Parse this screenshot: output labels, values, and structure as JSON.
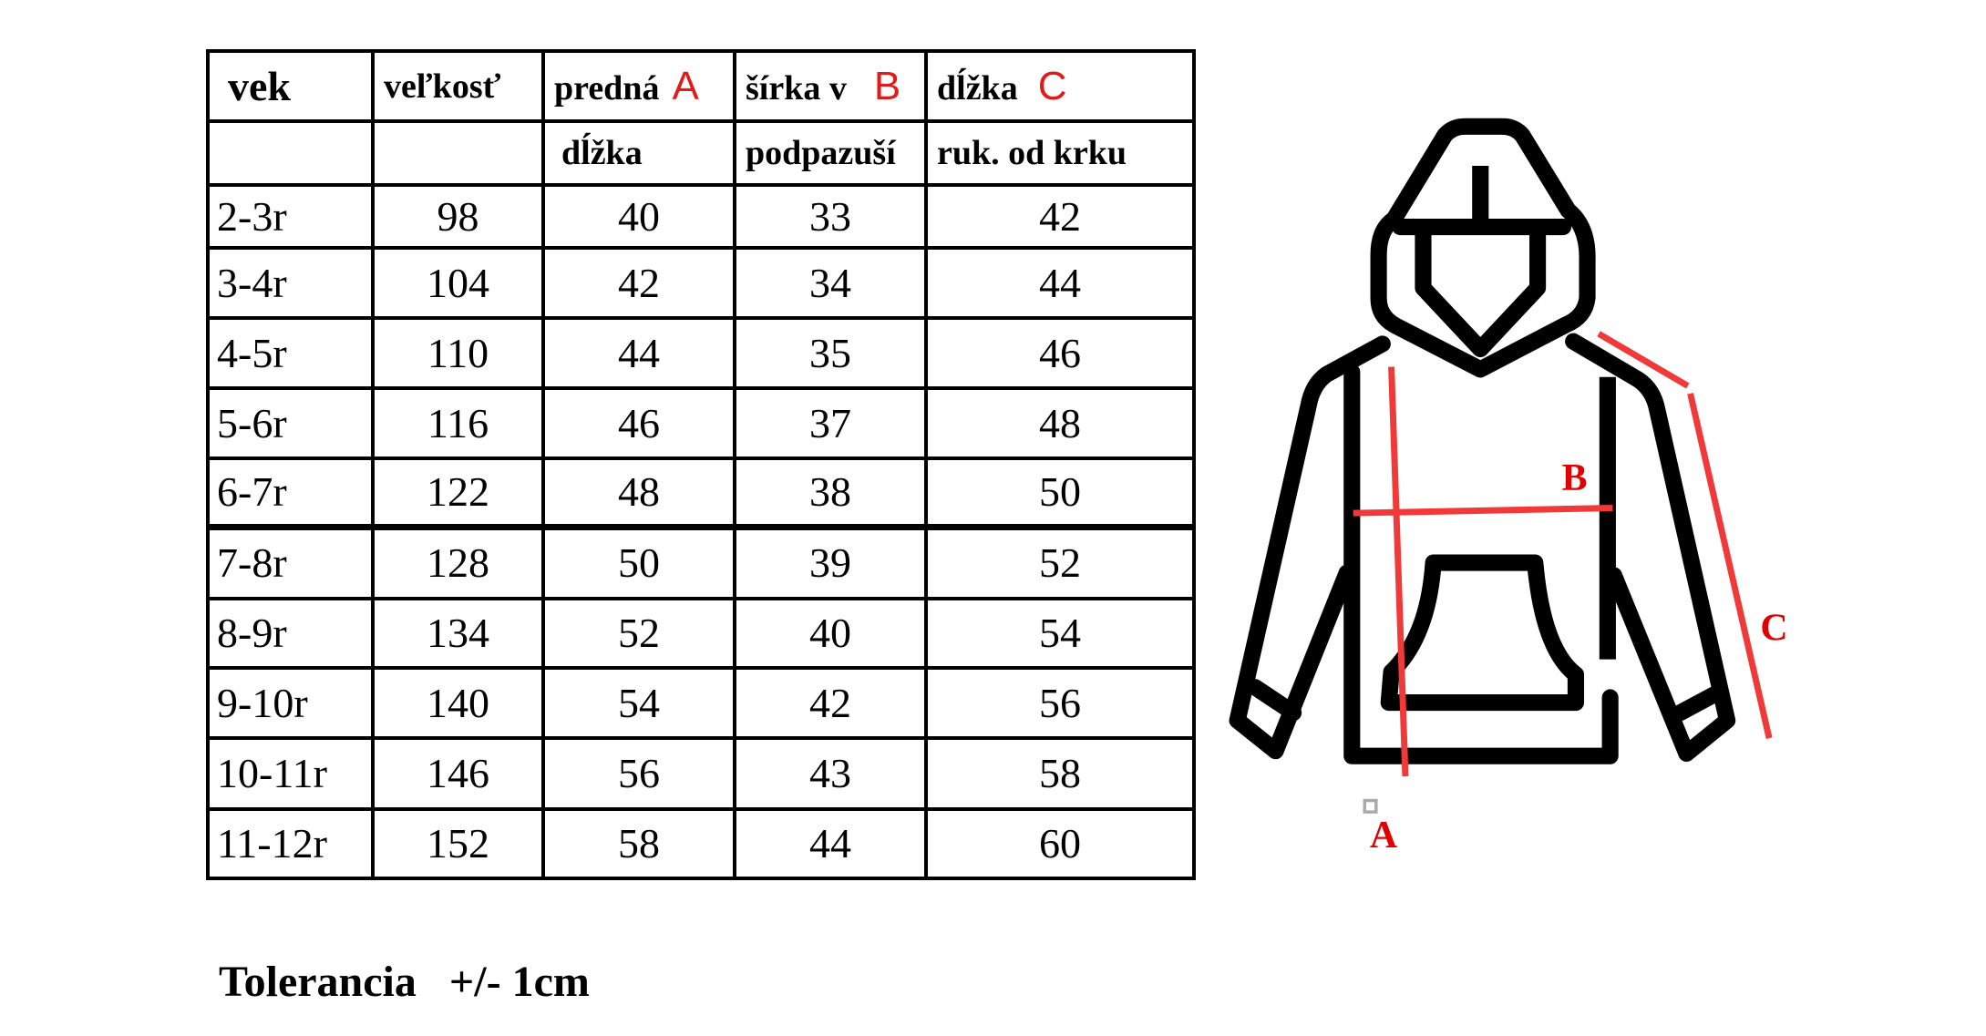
{
  "table": {
    "headers_row1": [
      "vek",
      "veľkosť",
      "predná",
      "šírka v",
      "dĺžka"
    ],
    "header_letters": [
      "A",
      "B",
      "C"
    ],
    "headers_row2": [
      "",
      "",
      "dĺžka",
      "podpazuší",
      "ruk. od krku"
    ],
    "rows": [
      [
        "2-3r",
        "98",
        "40",
        "33",
        "42"
      ],
      [
        "3-4r",
        "104",
        "42",
        "34",
        "44"
      ],
      [
        "4-5r",
        "110",
        "44",
        "35",
        "46"
      ],
      [
        "5-6r",
        "116",
        "46",
        "37",
        "48"
      ],
      [
        "6-7r",
        "122",
        "48",
        "38",
        "50"
      ],
      [
        "7-8r",
        "128",
        "50",
        "39",
        "52"
      ],
      [
        "8-9r",
        "134",
        "52",
        "40",
        "54"
      ],
      [
        "9-10r",
        "140",
        "54",
        "42",
        "56"
      ],
      [
        "10-11r",
        "146",
        "56",
        "43",
        "58"
      ],
      [
        "11-12r",
        "152",
        "58",
        "44",
        "60"
      ]
    ]
  },
  "tolerance": {
    "label": "Tolerancia",
    "value": "+/- 1cm"
  },
  "diagram": {
    "labels": {
      "a": "A",
      "b": "B",
      "c": "C"
    },
    "colors": {
      "outline": "#000000",
      "measure": "#f03a3a",
      "label": "#e00000"
    }
  }
}
